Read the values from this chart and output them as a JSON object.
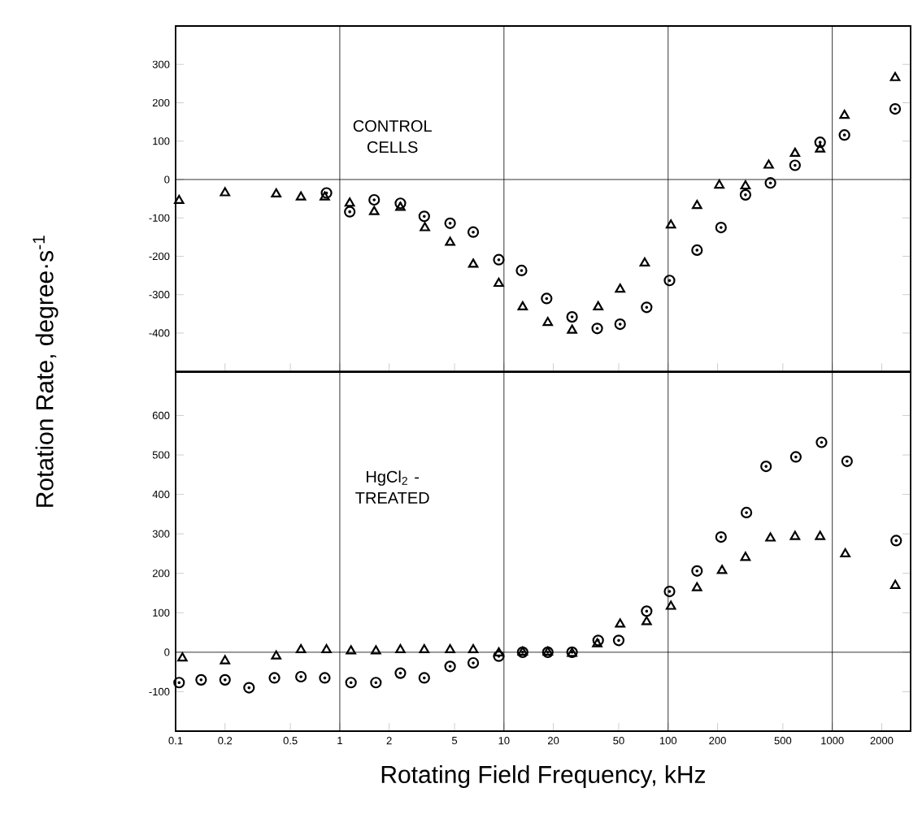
{
  "chart_data": [
    {
      "type": "scatter",
      "ylabel": "Rotation Rate, degree·s$^{-1}$",
      "log": "x",
      "xlim": [
        0.1,
        3000
      ],
      "ylim": [
        -500,
        400
      ],
      "xticks": [
        0.1,
        0.2,
        0.5,
        1,
        2,
        5,
        10,
        20,
        50,
        100,
        200,
        500,
        1000,
        2000
      ],
      "yticks": [
        -400,
        -300,
        -200,
        -100,
        0,
        100,
        200,
        300
      ],
      "tick_labels": "y",
      "annotations": [
        "CONTROL CELLS"
      ],
      "ref_lines": [
        {
          "axis": "x",
          "value": 1
        },
        {
          "axis": "x",
          "value": 10
        },
        {
          "axis": "x",
          "value": 100
        },
        {
          "axis": "x",
          "value": 1000
        },
        {
          "axis": "y",
          "value": 0
        }
      ],
      "series": [
        {
          "color": "#000000",
          "marker": "triangle",
          "x": [
            0.105,
            0.2,
            0.41,
            0.58,
            0.81,
            1.15,
            1.62,
            2.34,
            3.3,
            4.7,
            6.5,
            9.3,
            13,
            18.5,
            26,
            37.5,
            51,
            72,
            104,
            150,
            205,
            296,
            410,
            593,
            843,
            1186,
            2415
          ],
          "values": [
            -55,
            -35,
            -38,
            -46,
            -46,
            -62,
            -84,
            -73,
            -126,
            -164,
            -221,
            -271,
            -332,
            -373,
            -393,
            -332,
            -286,
            -218,
            -119,
            -68,
            -15,
            -17,
            37,
            68,
            79,
            167,
            265
          ]
        },
        {
          "color": "#000000",
          "marker": "circle",
          "x": [
            0.83,
            1.15,
            1.62,
            2.34,
            3.27,
            4.7,
            6.5,
            9.3,
            12.8,
            18.2,
            26,
            37,
            51,
            74,
            102,
            150,
            210,
            296,
            420,
            593,
            843,
            1186,
            2415
          ],
          "values": [
            -35,
            -84,
            -53,
            -62,
            -96,
            -114,
            -137,
            -209,
            -237,
            -310,
            -358,
            -388,
            -377,
            -333,
            -263,
            -184,
            -125,
            -40,
            -9,
            37,
            97,
            116,
            184
          ]
        }
      ]
    },
    {
      "type": "scatter",
      "xlabel": "Rotating Field Frequency, kHz",
      "log": "x",
      "xlim": [
        0.1,
        3000
      ],
      "ylim": [
        -200,
        710
      ],
      "xticks": [
        0.1,
        0.2,
        0.5,
        1,
        2,
        5,
        10,
        20,
        50,
        100,
        200,
        500,
        1000,
        2000
      ],
      "yticks": [
        -100,
        0,
        100,
        200,
        300,
        400,
        500,
        600
      ],
      "annotations": [
        "HgCl$_{2}$ - TREATED"
      ],
      "ref_lines": [
        {
          "axis": "x",
          "value": 1
        },
        {
          "axis": "x",
          "value": 10
        },
        {
          "axis": "x",
          "value": 100
        },
        {
          "axis": "x",
          "value": 1000
        },
        {
          "axis": "y",
          "value": 0
        }
      ],
      "series": [
        {
          "color": "#000000",
          "marker": "triangle",
          "x": [
            0.11,
            0.2,
            0.41,
            0.58,
            0.83,
            1.17,
            1.66,
            2.34,
            3.27,
            4.7,
            6.5,
            9.3,
            13,
            18.5,
            26,
            37,
            51,
            74,
            104,
            150,
            213,
            296,
            420,
            593,
            843,
            1200,
            2420
          ],
          "values": [
            -15,
            -22,
            -10,
            6,
            6,
            3,
            3,
            6,
            6,
            6,
            6,
            -2,
            0,
            0,
            -3,
            21,
            71,
            77,
            116,
            163,
            207,
            240,
            289,
            293,
            293,
            249,
            169
          ]
        },
        {
          "color": "#000000",
          "marker": "circle",
          "x": [
            0.105,
            0.143,
            0.2,
            0.28,
            0.4,
            0.58,
            0.81,
            1.17,
            1.66,
            2.34,
            3.27,
            4.7,
            6.5,
            9.3,
            13,
            18.5,
            26,
            37.5,
            50,
            74,
            102,
            150,
            210,
            300,
            395,
            600,
            860,
            1230,
            2450
          ],
          "values": [
            -77,
            -70,
            -70,
            -90,
            -65,
            -62,
            -65,
            -77,
            -77,
            -53,
            -65,
            -36,
            -27,
            -10,
            0,
            0,
            0,
            30,
            30,
            104,
            154,
            206,
            292,
            354,
            471,
            495,
            532,
            484,
            283
          ]
        }
      ]
    }
  ]
}
